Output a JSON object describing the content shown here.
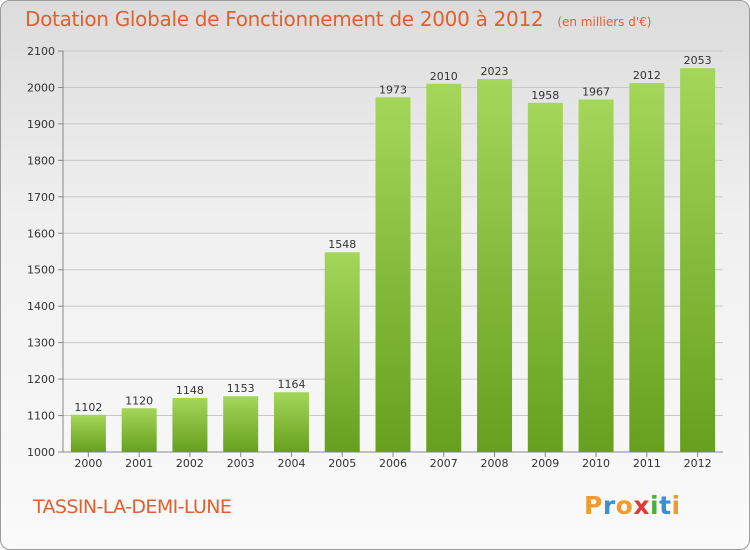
{
  "header": {
    "title": "Dotation Globale de Fonctionnement de 2000 à 2012",
    "unit_note": "(en milliers d'€)"
  },
  "footer": {
    "commune": "TASSIN-LA-DEMI-LUNE",
    "logo_text": "Proxiti",
    "logo_colors": [
      "#f29a2e",
      "#3b8fd6",
      "#f29a2e",
      "#e03a3a",
      "#4fae3a",
      "#3b8fd6",
      "#f29a2e"
    ]
  },
  "colors": {
    "bar_light": "#a4d65a",
    "bar_dark": "#66a01e",
    "grid": "#c8c8c8",
    "title": "#e06030"
  },
  "chart_data": {
    "type": "bar",
    "title": "Dotation Globale de Fonctionnement de 2000 à 2012",
    "subtitle": "(en milliers d'€)",
    "xlabel": "",
    "ylabel": "",
    "categories": [
      "2000",
      "2001",
      "2002",
      "2003",
      "2004",
      "2005",
      "2006",
      "2007",
      "2008",
      "2009",
      "2010",
      "2011",
      "2012"
    ],
    "values": [
      1102,
      1120,
      1148,
      1153,
      1164,
      1548,
      1973,
      2010,
      2023,
      1958,
      1967,
      2012,
      2053
    ],
    "ylim": [
      1000,
      2100
    ],
    "yticks": [
      1000,
      1100,
      1200,
      1300,
      1400,
      1500,
      1600,
      1700,
      1800,
      1900,
      2000,
      2100
    ],
    "grid": true,
    "data_labels": true,
    "legend": "none"
  }
}
